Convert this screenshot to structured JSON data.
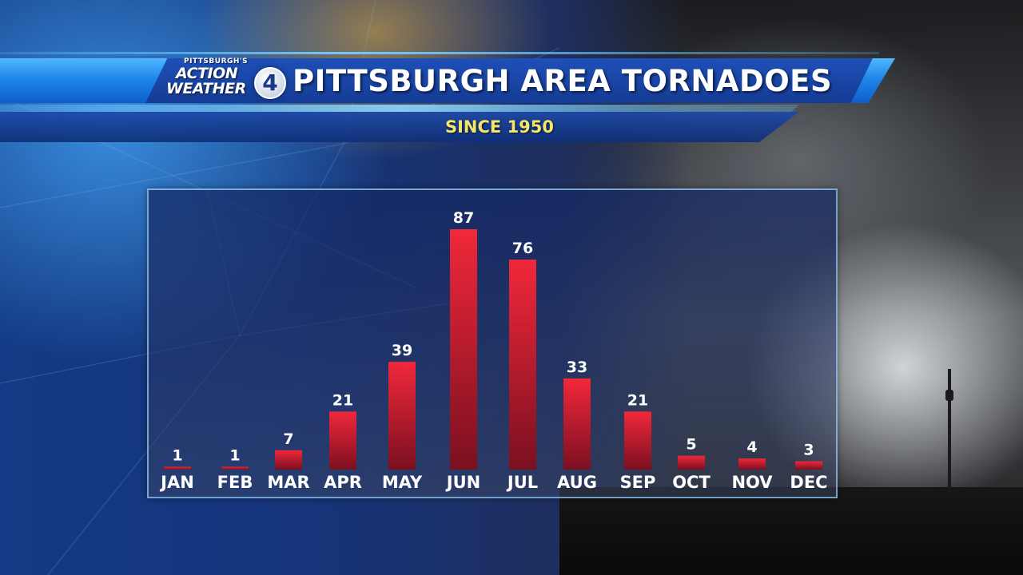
{
  "header": {
    "logo": {
      "top_text": "PITTSBURGH'S",
      "word1": "ACTION",
      "word2": "WEATHER",
      "number": "4"
    },
    "title": "PITTSBURGH AREA TORNADOES",
    "subtitle": "SINCE 1950"
  },
  "colors": {
    "bar_top": "#f1283a",
    "bar_bottom": "#7a1020",
    "title": "#ffffff",
    "subtitle": "#f5e66a",
    "banner": "#1f86ea"
  },
  "chart_data": {
    "type": "bar",
    "title": "PITTSBURGH AREA TORNADOES",
    "subtitle": "SINCE 1950",
    "categories": [
      "JAN",
      "FEB",
      "MAR",
      "APR",
      "MAY",
      "JUN",
      "JUL",
      "AUG",
      "SEP",
      "OCT",
      "NOV",
      "DEC"
    ],
    "values": [
      1,
      1,
      7,
      21,
      39,
      87,
      76,
      33,
      21,
      5,
      4,
      3
    ],
    "data_labels": [
      "1",
      "1",
      "7",
      "21",
      "39",
      "87",
      "76",
      "33",
      "21",
      "5",
      "4",
      "3"
    ],
    "xlabel": "",
    "ylabel": "",
    "ylim": [
      0,
      87
    ],
    "grid": false,
    "legend": "none"
  }
}
